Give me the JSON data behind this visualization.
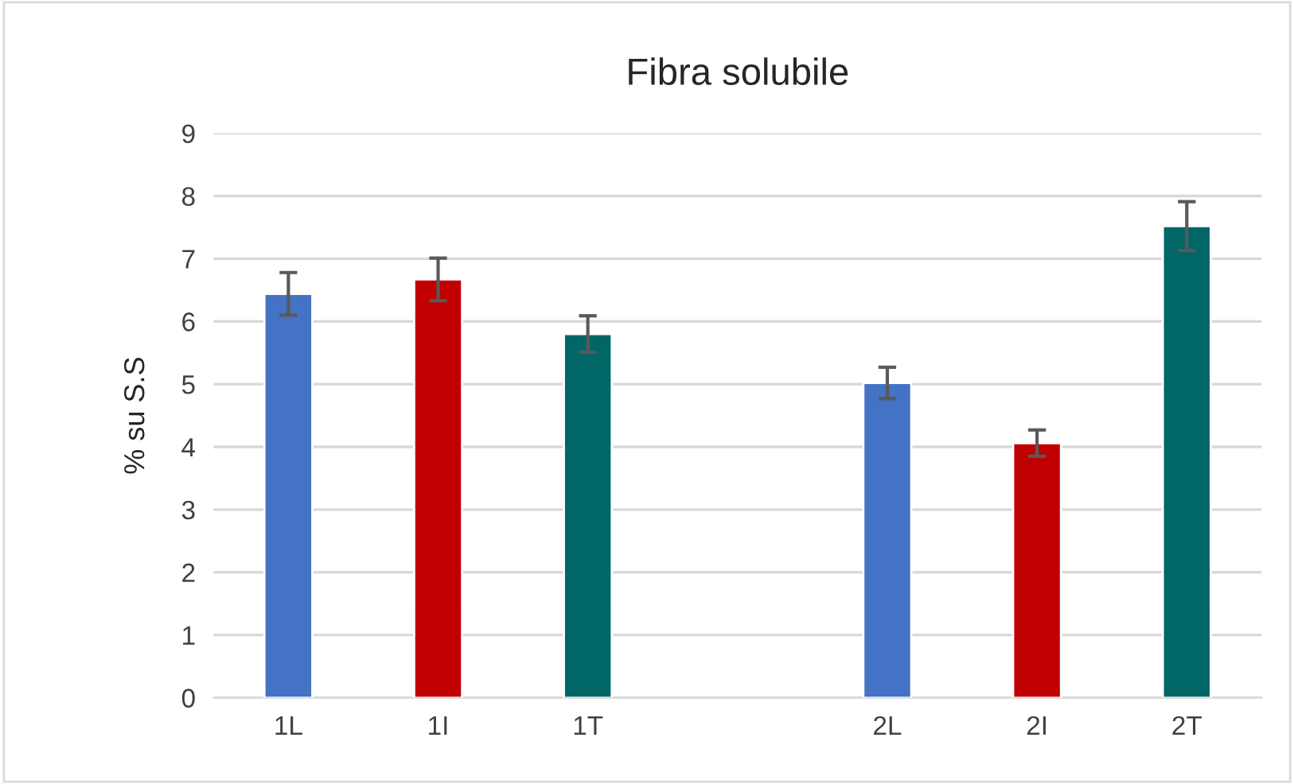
{
  "chart_data": {
    "type": "bar",
    "title": "Fibra solubile",
    "ylabel": "% su S.S",
    "categories": [
      "1L",
      "1I",
      "1T",
      null,
      "2L",
      "2I",
      "2T"
    ],
    "values": [
      6.44,
      6.67,
      5.8,
      null,
      5.02,
      4.06,
      7.52
    ],
    "colors": [
      "#4472c4",
      "#c00000",
      "#006666",
      "#ffffff",
      "#4472c4",
      "#c00000",
      "#006666"
    ],
    "errors": [
      0.34,
      0.34,
      0.29,
      null,
      0.25,
      0.21,
      0.39
    ],
    "ylim": [
      0,
      9
    ],
    "yticks": [
      0,
      1,
      2,
      3,
      4,
      5,
      6,
      7,
      8,
      9
    ],
    "grid": "y"
  }
}
